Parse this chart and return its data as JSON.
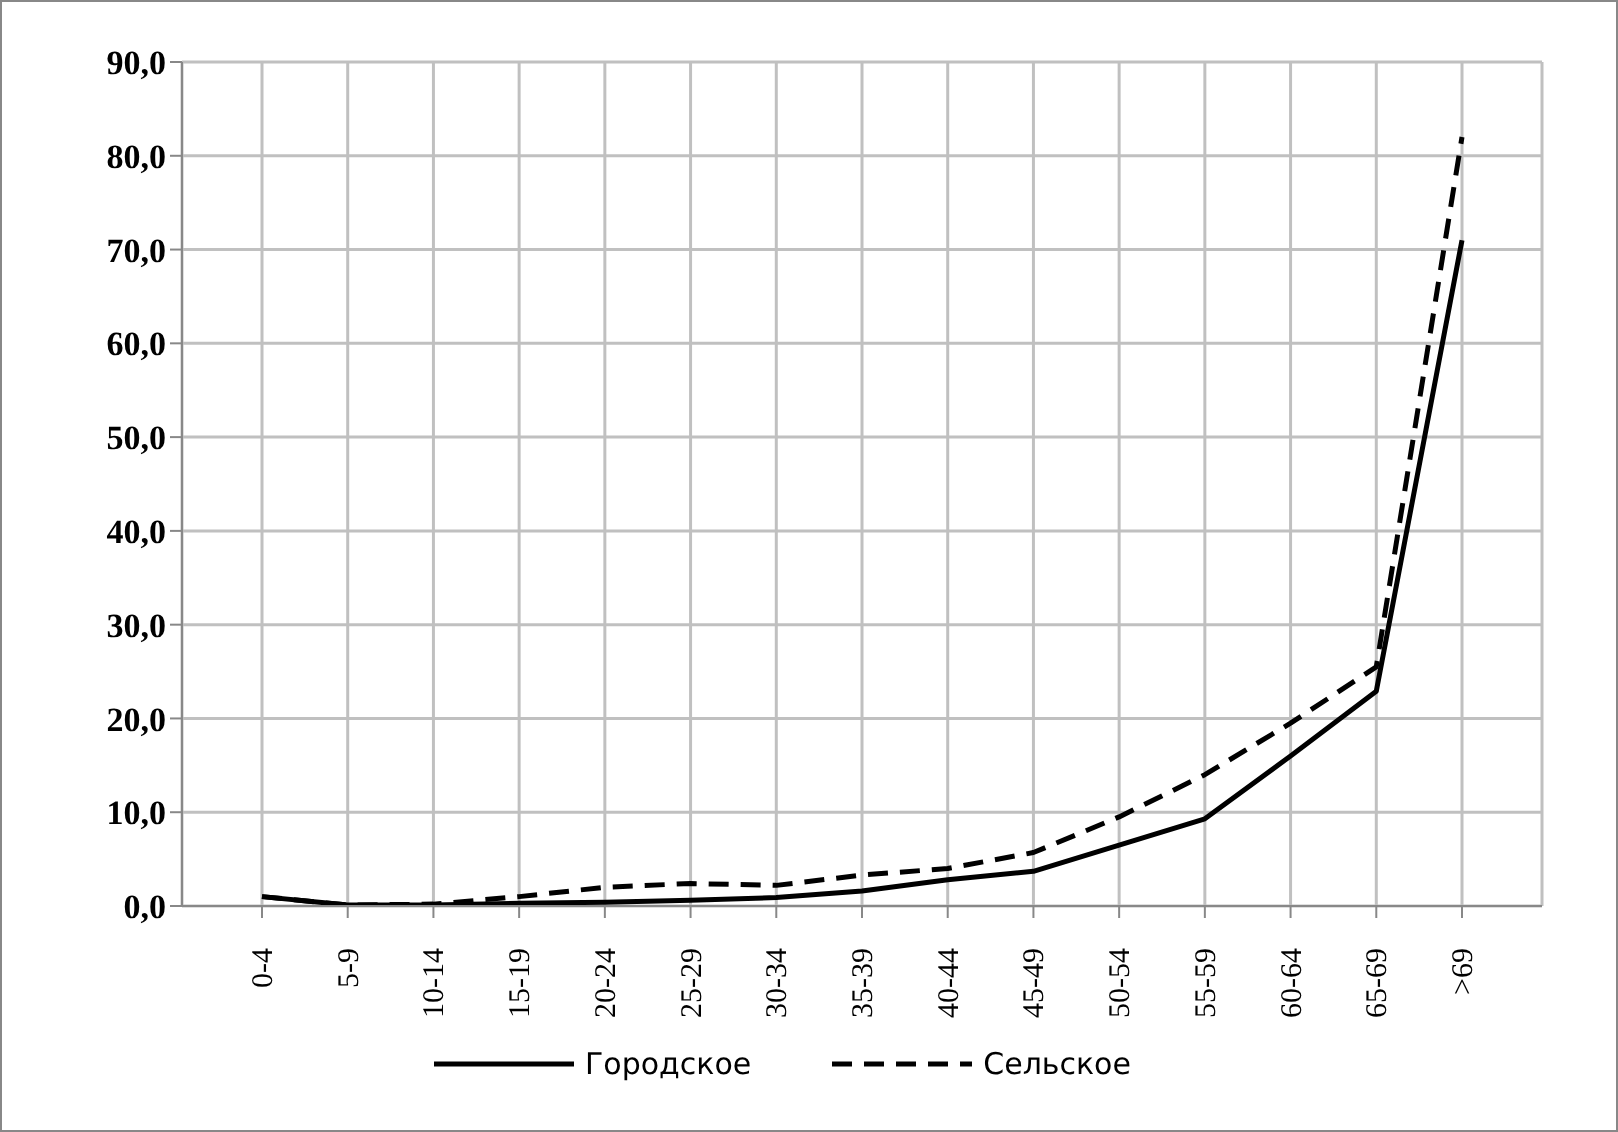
{
  "chart_data": {
    "type": "line",
    "categories": [
      "0-4",
      "5-9",
      "10-14",
      "15-19",
      "20-24",
      "25-29",
      "30-34",
      "35-39",
      "40-44",
      "45-49",
      "50-54",
      "55-59",
      "60-64",
      "65-69",
      ">69"
    ],
    "series": [
      {
        "name": "Городское",
        "color": "#000000",
        "line_style": "solid",
        "values": [
          1.0,
          0.1,
          0.1,
          0.3,
          0.4,
          0.6,
          0.9,
          1.6,
          2.8,
          3.7,
          6.5,
          9.3,
          16.0,
          22.9,
          71.0
        ]
      },
      {
        "name": "Сельское",
        "color": "#000000",
        "line_style": "dashed",
        "values": [
          1.0,
          0.1,
          0.2,
          1.0,
          2.0,
          2.4,
          2.2,
          3.3,
          4.0,
          5.7,
          9.5,
          14.0,
          19.5,
          25.5,
          82.0
        ]
      }
    ],
    "ylim": [
      0,
      90
    ],
    "yticks": [
      {
        "value": 0,
        "label": "0,0"
      },
      {
        "value": 10,
        "label": "10,0"
      },
      {
        "value": 20,
        "label": "20,0"
      },
      {
        "value": 30,
        "label": "30,0"
      },
      {
        "value": 40,
        "label": "40,0"
      },
      {
        "value": 50,
        "label": "50,0"
      },
      {
        "value": 60,
        "label": "60,0"
      },
      {
        "value": 70,
        "label": "70,0"
      },
      {
        "value": 80,
        "label": "80,0"
      },
      {
        "value": 90,
        "label": "90,0"
      }
    ],
    "grid": true,
    "legend": "bottom",
    "marker": "none"
  }
}
